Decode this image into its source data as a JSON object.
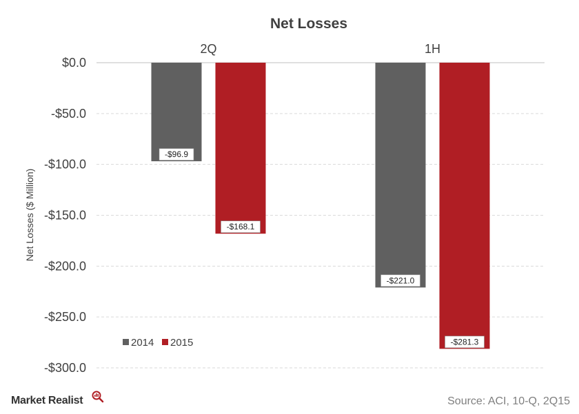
{
  "chart_data": {
    "type": "bar",
    "title": "Net Losses",
    "ylabel": "Net Losses ($ Million)",
    "xlabel": "",
    "categories": [
      "2Q",
      "1H"
    ],
    "series": [
      {
        "name": "2014",
        "color": "#606060",
        "values": [
          -96.9,
          -221.0
        ],
        "labels": [
          "-$96.9",
          "-$221.0"
        ]
      },
      {
        "name": "2015",
        "color": "#b01e24",
        "values": [
          -168.1,
          -281.3
        ],
        "labels": [
          "-$168.1",
          "-$281.3"
        ]
      }
    ],
    "ylim": [
      -300,
      0
    ],
    "yticks": [
      0,
      -50,
      -100,
      -150,
      -200,
      -250,
      -300
    ],
    "ytick_labels": [
      "$0.0",
      "-$50.0",
      "-$100.0",
      "-$150.0",
      "-$200.0",
      "-$250.0",
      "-$300.0"
    ],
    "grid": true,
    "legend_position": "bottom-left",
    "category_axis_position": "top"
  },
  "footer": {
    "brand": "Market Realist",
    "brand_icon": "magnifier-icon",
    "source": "Source: ACI, 10-Q, 2Q15"
  }
}
